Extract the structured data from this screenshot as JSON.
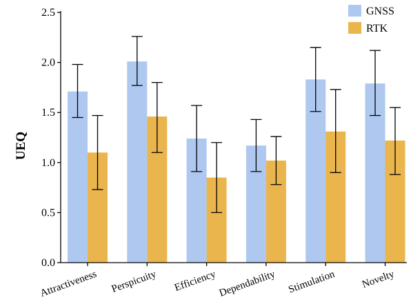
{
  "chart_data": {
    "type": "bar",
    "title": "",
    "xlabel": "",
    "ylabel": "UEQ",
    "ylim": [
      0.0,
      2.5
    ],
    "yticks": [
      "0.0",
      "0.5",
      "1.0",
      "1.5",
      "2.0",
      "2.5"
    ],
    "grid": false,
    "legend_position": "top-right",
    "categories": [
      "Attractiveness",
      "Perspicuity",
      "Efficiency",
      "Dependability",
      "Stimulation",
      "Novelty"
    ],
    "series": [
      {
        "name": "GNSS",
        "color": "#aec8f0",
        "values": [
          1.71,
          2.01,
          1.24,
          1.17,
          1.83,
          1.79
        ],
        "error_low": [
          1.45,
          1.77,
          0.91,
          0.91,
          1.51,
          1.47
        ],
        "error_high": [
          1.98,
          2.26,
          1.57,
          1.43,
          2.15,
          2.12
        ]
      },
      {
        "name": "RTK",
        "color": "#ebb54e",
        "values": [
          1.1,
          1.46,
          0.85,
          1.02,
          1.31,
          1.22
        ],
        "error_low": [
          0.73,
          1.1,
          0.5,
          0.78,
          0.9,
          0.88
        ],
        "error_high": [
          1.47,
          1.8,
          1.2,
          1.26,
          1.73,
          1.55
        ]
      }
    ]
  }
}
